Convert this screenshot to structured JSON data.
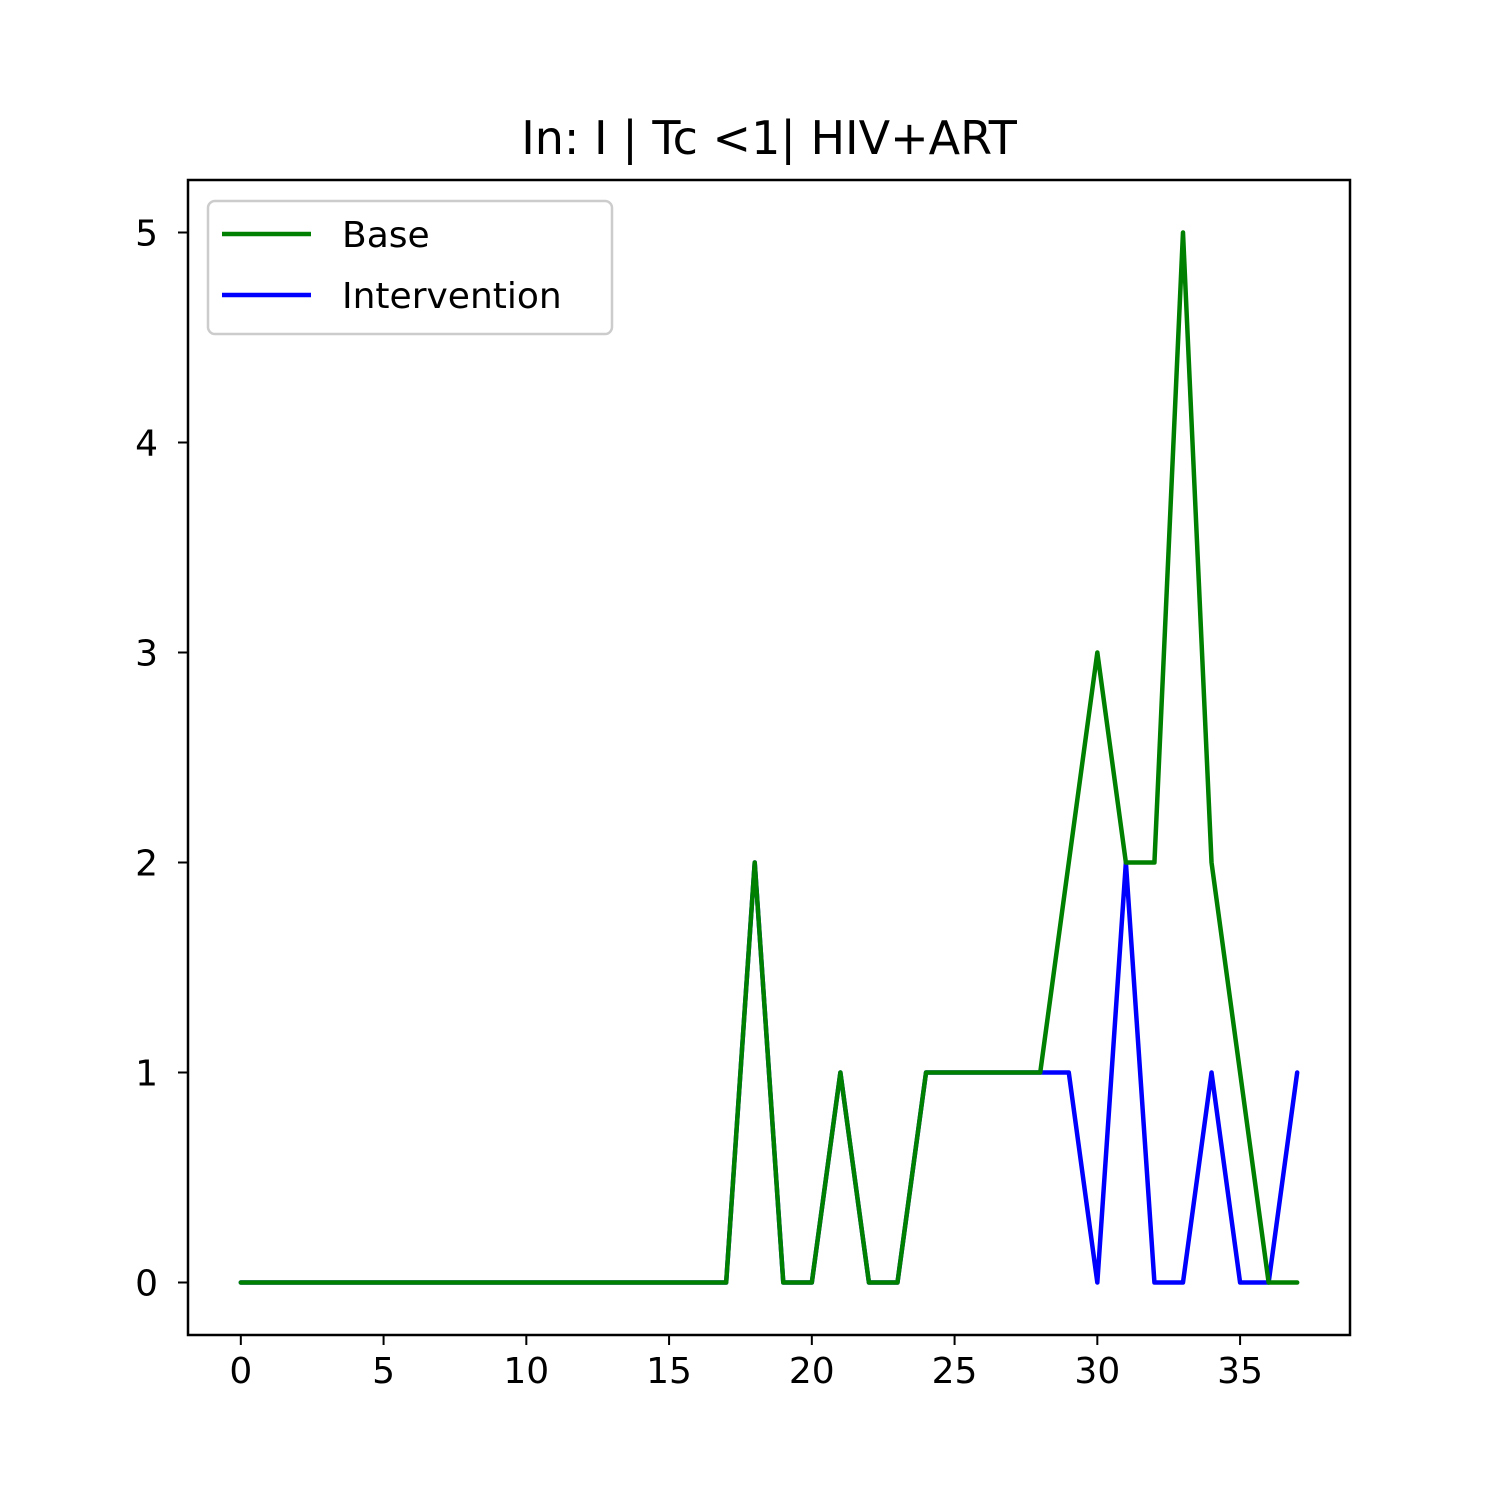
{
  "chart_data": {
    "type": "line",
    "title": "In: I | Tc <1| HIV+ART",
    "xlabel": "",
    "ylabel": "",
    "xlim": [
      -1.85,
      38.85
    ],
    "ylim": [
      -0.25,
      5.25
    ],
    "xticks": [
      0,
      5,
      10,
      15,
      20,
      25,
      30,
      35
    ],
    "yticks": [
      0,
      1,
      2,
      3,
      4,
      5
    ],
    "grid": false,
    "legend_position": "top-left",
    "x": [
      0,
      1,
      2,
      3,
      4,
      5,
      6,
      7,
      8,
      9,
      10,
      11,
      12,
      13,
      14,
      15,
      16,
      17,
      18,
      19,
      20,
      21,
      22,
      23,
      24,
      25,
      26,
      27,
      28,
      29,
      30,
      31,
      32,
      33,
      34,
      35,
      36,
      37
    ],
    "series": [
      {
        "name": "Intervention",
        "color": "#0000ff",
        "values": [
          0,
          0,
          0,
          0,
          0,
          0,
          0,
          0,
          0,
          0,
          0,
          0,
          0,
          0,
          0,
          0,
          0,
          0,
          2,
          0,
          0,
          1,
          0,
          0,
          1,
          1,
          1,
          1,
          1,
          1,
          0,
          2,
          0,
          0,
          1,
          0,
          0,
          1
        ]
      },
      {
        "name": "Base",
        "color": "#008000",
        "values": [
          0,
          0,
          0,
          0,
          0,
          0,
          0,
          0,
          0,
          0,
          0,
          0,
          0,
          0,
          0,
          0,
          0,
          0,
          2,
          0,
          0,
          1,
          0,
          0,
          1,
          1,
          1,
          1,
          1,
          2,
          3,
          2,
          2,
          5,
          2,
          1,
          0,
          0
        ]
      }
    ],
    "legend_order": [
      "Base",
      "Intervention"
    ]
  }
}
